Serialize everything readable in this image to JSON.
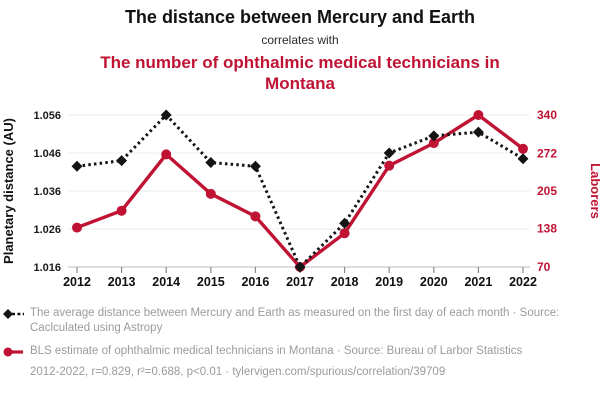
{
  "header": {
    "title": "The distance between Mercury and Earth",
    "connector": "correlates with",
    "subtitle": "The number of ophthalmic medical technicians in Montana"
  },
  "colors": {
    "series_black": "#141414",
    "series_red": "#c01334",
    "gridline": "#ededed",
    "axis_line": "#c9c9c9",
    "tick_mark": "#8a8a8a",
    "muted_text": "#9b9b9b"
  },
  "chart_data": {
    "type": "line",
    "x": [
      2012,
      2013,
      2014,
      2015,
      2016,
      2017,
      2018,
      2019,
      2020,
      2021,
      2022
    ],
    "x_tick_labels": [
      "2012",
      "2013",
      "2014",
      "2015",
      "2016",
      "2017",
      "2018",
      "2019",
      "2020",
      "2021",
      "2022"
    ],
    "series": [
      {
        "name": "The average distance between Mercury and Earth",
        "axis": "left",
        "style": "dotted",
        "marker": "diamond",
        "color": "#141414",
        "values": [
          1.0425,
          1.044,
          1.056,
          1.0435,
          1.0425,
          1.016,
          1.0275,
          1.046,
          1.0505,
          1.0515,
          1.0445
        ]
      },
      {
        "name": "BLS estimate of ophthalmic medical technicians in Montana",
        "axis": "right",
        "style": "solid",
        "marker": "circle",
        "color": "#c01334",
        "values": [
          140,
          170,
          270,
          200,
          160,
          70,
          130,
          250,
          290,
          340,
          280
        ]
      }
    ],
    "left_axis": {
      "label": "Planetary distance (AU)",
      "ticks": [
        1.016,
        1.026,
        1.036,
        1.046,
        1.056
      ],
      "tick_labels": [
        "1.016",
        "1.026",
        "1.036",
        "1.046",
        "1.056"
      ],
      "range": [
        1.016,
        1.056
      ]
    },
    "right_axis": {
      "label": "Laborers",
      "ticks": [
        70,
        138,
        205,
        272,
        340
      ],
      "tick_labels": [
        "70",
        "138",
        "205",
        "272",
        "340"
      ],
      "range": [
        70,
        340
      ]
    },
    "grid": "horizontal",
    "legend_position": "below"
  },
  "legend": [
    {
      "marker": "black-diamond-dotted-line",
      "text": "The average distance between Mercury and Earth as measured on the first day of each month · Source: Caclculated using Astropy"
    },
    {
      "marker": "red-circle-solid-line",
      "text": "BLS estimate of ophthalmic medical technicians in Montana · Source: Bureau of Larbor Statistics"
    }
  ],
  "footer": "2012-2022, r=0.829, r²=0.688, p<0.01 · tylervigen.com/spurious/correlation/39709"
}
